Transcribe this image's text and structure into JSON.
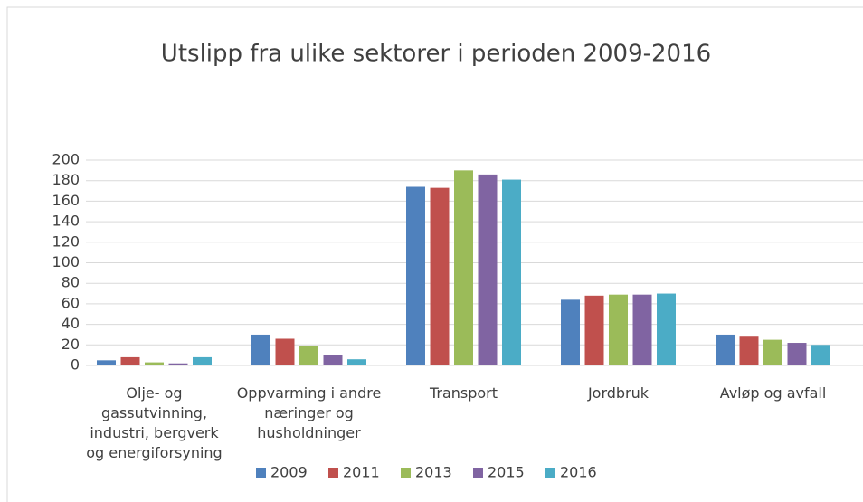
{
  "chart_data": {
    "type": "bar",
    "title": "Utslipp fra ulike sektorer i perioden 2009-2016",
    "categories": [
      "Olje- og gassutvinning, industri, bergverk og energiforsyning",
      "Oppvarming i andre næringer og husholdninger",
      "Transport",
      "Jordbruk",
      "Avløp og avfall"
    ],
    "series": [
      {
        "name": "2009",
        "color": "#4f81bd",
        "values": [
          5,
          30,
          174,
          64,
          30
        ]
      },
      {
        "name": "2011",
        "color": "#c0504d",
        "values": [
          8,
          26,
          173,
          68,
          28
        ]
      },
      {
        "name": "2013",
        "color": "#9bbb59",
        "values": [
          3,
          19,
          190,
          69,
          25
        ]
      },
      {
        "name": "2015",
        "color": "#8064a2",
        "values": [
          2,
          10,
          186,
          69,
          22
        ]
      },
      {
        "name": "2016",
        "color": "#4bacc6",
        "values": [
          8,
          6,
          181,
          70,
          20
        ]
      }
    ],
    "ylim": [
      0,
      200
    ],
    "yticks": [
      0,
      20,
      40,
      60,
      80,
      100,
      120,
      140,
      160,
      180,
      200
    ],
    "grid": true,
    "legend": "bottom"
  }
}
